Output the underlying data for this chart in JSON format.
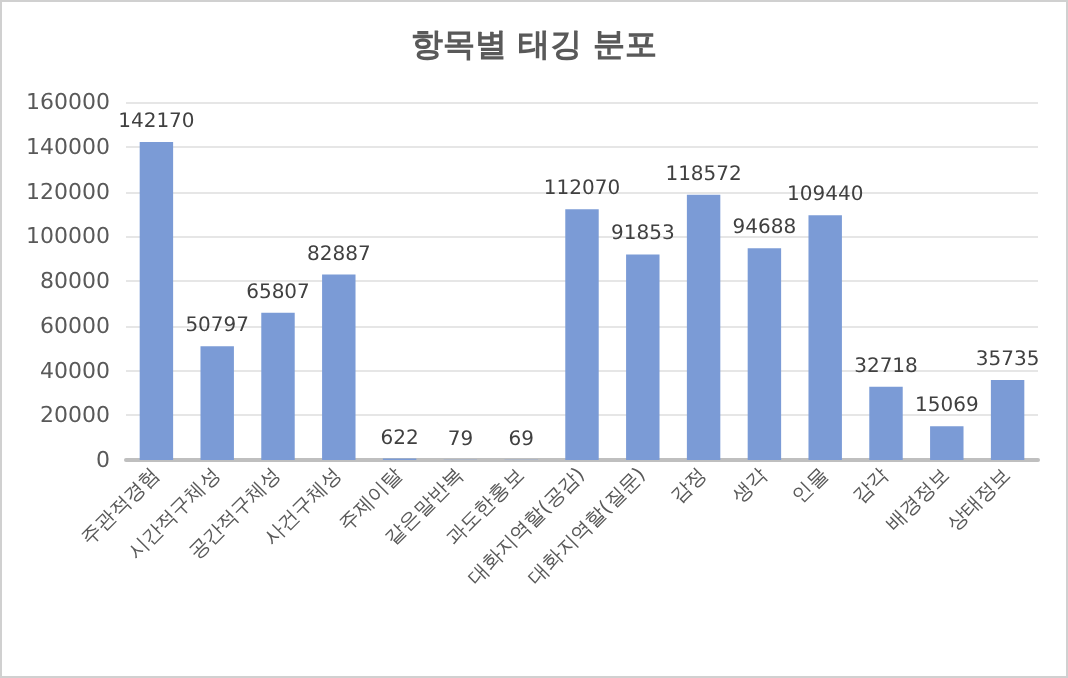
{
  "chart_data": {
    "type": "bar",
    "title": "항목별 태깅 분포",
    "categories": [
      "주관적경험",
      "시간적구체성",
      "공간적구체성",
      "사건구체성",
      "주제이탈",
      "같은말반복",
      "과도한홍보",
      "대화지역할(공감)",
      "대화지역할(질문)",
      "감정",
      "생각",
      "인물",
      "감각",
      "배경정보",
      "상태정보"
    ],
    "values": [
      142170,
      50797,
      65807,
      82887,
      622,
      79,
      69,
      112070,
      91853,
      118572,
      94688,
      109440,
      32718,
      15069,
      35735
    ],
    "color": "#7b9bd6",
    "ylim": [
      0,
      160000
    ],
    "yticks": [
      0,
      20000,
      40000,
      60000,
      80000,
      100000,
      120000,
      140000,
      160000
    ],
    "grid": true,
    "data_labels": true
  }
}
